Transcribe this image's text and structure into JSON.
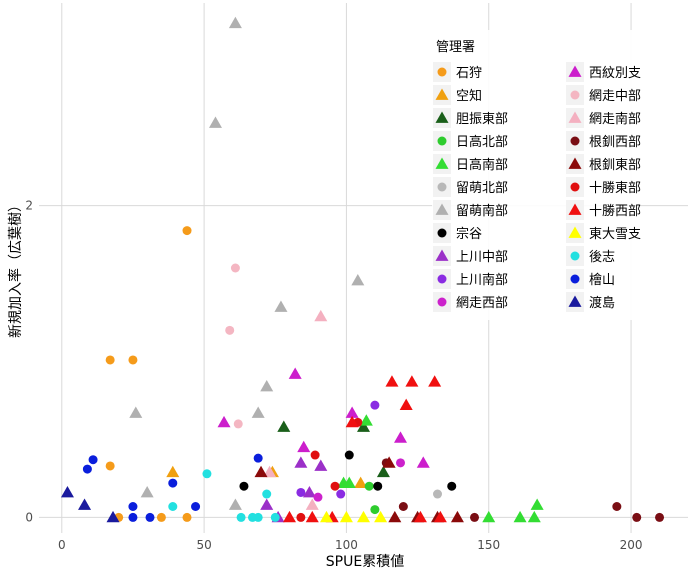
{
  "chart_data": {
    "type": "scatter",
    "xlabel": "SPUE累積値",
    "ylabel": "新規加入率（広葉樹）",
    "xlim": [
      -8,
      220
    ],
    "ylim": [
      -0.1,
      3.3
    ],
    "x_ticks": [
      0,
      50,
      100,
      150,
      200
    ],
    "y_ticks": [
      0,
      2
    ],
    "grid": true,
    "legend": {
      "title": "管理署",
      "position": "top-right-inside",
      "columns": 2
    },
    "series": [
      {
        "name": "石狩",
        "color": "#F59B1A",
        "marker": "circle",
        "points": [
          [
            44,
            1.84
          ],
          [
            17,
            1.01
          ],
          [
            25,
            1.01
          ],
          [
            17,
            0.33
          ],
          [
            20,
            0.0
          ],
          [
            35,
            0.0
          ],
          [
            44,
            0.0
          ]
        ]
      },
      {
        "name": "空知",
        "color": "#F0A010",
        "marker": "triangle",
        "points": [
          [
            39,
            0.29
          ],
          [
            74,
            0.29
          ],
          [
            105,
            0.22
          ]
        ]
      },
      {
        "name": "胆振東部",
        "color": "#1A5F1A",
        "marker": "triangle",
        "points": [
          [
            78,
            0.58
          ],
          [
            106,
            0.58
          ],
          [
            113,
            0.29
          ]
        ]
      },
      {
        "name": "日高北部",
        "color": "#2ECC2E",
        "marker": "circle",
        "points": [
          [
            108,
            0.2
          ],
          [
            110,
            0.05
          ]
        ]
      },
      {
        "name": "日高南部",
        "color": "#33DD33",
        "marker": "triangle",
        "points": [
          [
            99,
            0.22
          ],
          [
            101,
            0.22
          ],
          [
            107,
            0.62
          ],
          [
            150,
            0.0
          ],
          [
            161,
            0.0
          ],
          [
            166,
            0.0
          ],
          [
            167,
            0.08
          ]
        ]
      },
      {
        "name": "留萌北部",
        "color": "#B8B8B8",
        "marker": "circle",
        "points": [
          [
            132,
            0.15
          ]
        ]
      },
      {
        "name": "留萌南部",
        "color": "#B0B0B0",
        "marker": "triangle",
        "points": [
          [
            61,
            3.17
          ],
          [
            54,
            2.53
          ],
          [
            104,
            1.52
          ],
          [
            77,
            1.35
          ],
          [
            72,
            0.84
          ],
          [
            26,
            0.67
          ],
          [
            69,
            0.67
          ],
          [
            30,
            0.16
          ],
          [
            61,
            0.08
          ]
        ]
      },
      {
        "name": "宗谷",
        "color": "#000000",
        "marker": "circle",
        "points": [
          [
            64,
            0.2
          ],
          [
            101,
            0.4
          ],
          [
            111,
            0.2
          ],
          [
            137,
            0.2
          ]
        ]
      },
      {
        "name": "上川中部",
        "color": "#9B30C8",
        "marker": "triangle",
        "points": [
          [
            84,
            0.35
          ],
          [
            87,
            0.16
          ],
          [
            91,
            0.33
          ],
          [
            72,
            0.08
          ],
          [
            76,
            0.0
          ]
        ]
      },
      {
        "name": "上川南部",
        "color": "#8A2BE2",
        "marker": "circle",
        "points": [
          [
            110,
            0.72
          ],
          [
            98,
            0.15
          ],
          [
            84,
            0.16
          ]
        ]
      },
      {
        "name": "網走西部",
        "color": "#CC22CC",
        "marker": "circle",
        "points": [
          [
            90,
            0.13
          ],
          [
            119,
            0.35
          ]
        ]
      },
      {
        "name": "西紋別支",
        "color": "#CC1ECC",
        "marker": "triangle",
        "points": [
          [
            57,
            0.61
          ],
          [
            82,
            0.92
          ],
          [
            102,
            0.67
          ],
          [
            85,
            0.45
          ],
          [
            119,
            0.51
          ],
          [
            127,
            0.35
          ]
        ]
      },
      {
        "name": "網走中部",
        "color": "#F4B6C2",
        "marker": "circle",
        "points": [
          [
            61,
            1.6
          ],
          [
            59,
            1.2
          ],
          [
            62,
            0.6
          ]
        ]
      },
      {
        "name": "網走南部",
        "color": "#F4B0C0",
        "marker": "triangle",
        "points": [
          [
            91,
            1.29
          ],
          [
            73,
            0.29
          ],
          [
            88,
            0.08
          ]
        ]
      },
      {
        "name": "根釧西部",
        "color": "#7A0E14",
        "marker": "circle",
        "points": [
          [
            114,
            0.35
          ],
          [
            120,
            0.07
          ],
          [
            145,
            0.0
          ],
          [
            195,
            0.07
          ],
          [
            202,
            0.0
          ],
          [
            210,
            0.0
          ]
        ]
      },
      {
        "name": "根釧東部",
        "color": "#8B0A0A",
        "marker": "triangle",
        "points": [
          [
            70,
            0.29
          ],
          [
            115,
            0.35
          ],
          [
            117,
            0.0
          ],
          [
            125,
            0.0
          ],
          [
            132,
            0.0
          ],
          [
            139,
            0.0
          ]
        ]
      },
      {
        "name": "十勝東部",
        "color": "#E01010",
        "marker": "circle",
        "points": [
          [
            89,
            0.4
          ],
          [
            104,
            0.61
          ],
          [
            96,
            0.2
          ],
          [
            84,
            0.0
          ]
        ]
      },
      {
        "name": "十勝西部",
        "color": "#F01010",
        "marker": "triangle",
        "points": [
          [
            116,
            0.87
          ],
          [
            123,
            0.87
          ],
          [
            131,
            0.87
          ],
          [
            121,
            0.72
          ],
          [
            102,
            0.61
          ],
          [
            80,
            0.0
          ],
          [
            88,
            0.0
          ],
          [
            95,
            0.0
          ],
          [
            126,
            0.0
          ],
          [
            133,
            0.0
          ]
        ]
      },
      {
        "name": "東大雪支",
        "color": "#FFFF00",
        "marker": "triangle",
        "points": [
          [
            93,
            0.0
          ],
          [
            100,
            0.0
          ],
          [
            106,
            0.0
          ],
          [
            112,
            0.0
          ]
        ]
      },
      {
        "name": "後志",
        "color": "#22E0E0",
        "marker": "circle",
        "points": [
          [
            51,
            0.28
          ],
          [
            39,
            0.07
          ],
          [
            67,
            0.0
          ],
          [
            72,
            0.15
          ],
          [
            75,
            0.0
          ],
          [
            63,
            0.0
          ],
          [
            69,
            0.0
          ]
        ]
      },
      {
        "name": "檜山",
        "color": "#0A1EDC",
        "marker": "circle",
        "points": [
          [
            11,
            0.37
          ],
          [
            9,
            0.31
          ],
          [
            39,
            0.22
          ],
          [
            25,
            0.07
          ],
          [
            47,
            0.07
          ],
          [
            25,
            0.0
          ],
          [
            31,
            0.0
          ],
          [
            69,
            0.38
          ]
        ]
      },
      {
        "name": "渡島",
        "color": "#1A1A9E",
        "marker": "triangle",
        "points": [
          [
            2,
            0.16
          ],
          [
            8,
            0.08
          ],
          [
            18,
            0.0
          ]
        ]
      }
    ]
  }
}
